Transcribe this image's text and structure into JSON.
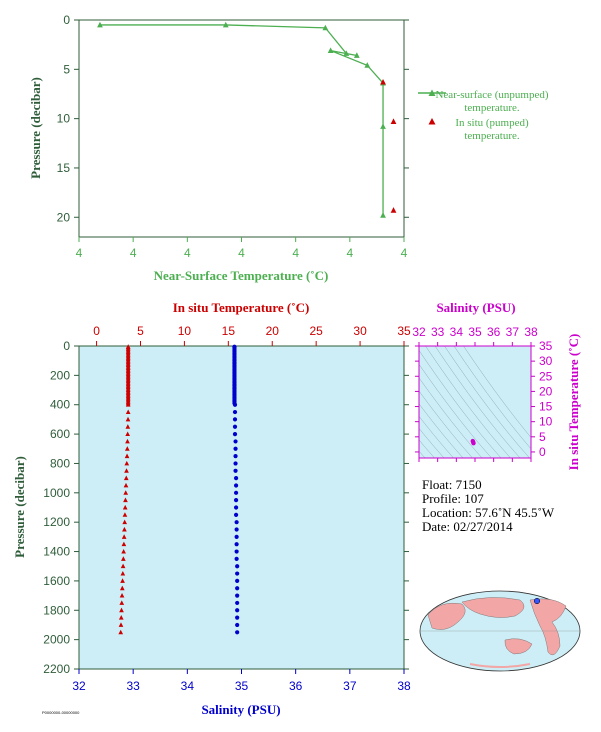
{
  "colors": {
    "green": "#4caf50",
    "axis_green": "#2f5d3a",
    "red": "#cc0000",
    "blue": "#0000cc",
    "magenta": "#cc00cc",
    "panel_bg": "#cdeef6",
    "ts_contour": "#8fa8b8",
    "land": "#f2a6a6",
    "ocean": "#cdeef6"
  },
  "chart_data": [
    {
      "type": "line",
      "xlabel": "Near-Surface Temperature (˚C)",
      "ylabel": "Pressure (decibar)",
      "x_tick_labels": [
        "4",
        "4",
        "4",
        "4",
        "4",
        "4",
        "4"
      ],
      "y_ticks": [
        0,
        5,
        10,
        15,
        20
      ],
      "ylim": [
        0,
        22
      ],
      "xlim": [
        3.4,
        4.02
      ],
      "y_reversed": true,
      "legend_placement": "right",
      "series": [
        {
          "name": "Near-surface (unpumped) temperature.",
          "marker": "triangle",
          "line": true,
          "color": "#4caf50",
          "points": [
            {
              "x": 3.44,
              "y": 0.5
            },
            {
              "x": 3.68,
              "y": 0.5
            },
            {
              "x": 3.87,
              "y": 0.8
            },
            {
              "x": 3.91,
              "y": 3.4
            },
            {
              "x": 3.93,
              "y": 3.6
            },
            {
              "x": 3.88,
              "y": 3.1
            },
            {
              "x": 3.95,
              "y": 4.6
            },
            {
              "x": 3.98,
              "y": 6.4
            },
            {
              "x": 3.98,
              "y": 10.8
            },
            {
              "x": 3.98,
              "y": 19.8
            }
          ]
        },
        {
          "name": "In situ (pumped) temperature.",
          "marker": "triangle",
          "line": false,
          "color": "#cc0000",
          "points": [
            {
              "x": 3.98,
              "y": 6.3
            },
            {
              "x": 4.0,
              "y": 10.3
            },
            {
              "x": 4.0,
              "y": 19.3
            }
          ]
        }
      ]
    },
    {
      "type": "scatter",
      "top_axis_label": "In situ Temperature (˚C)",
      "bottom_axis_label": "Salinity (PSU)",
      "ylabel": "Pressure (decibar)",
      "temp_range": [
        -2,
        35
      ],
      "temp_ticks": [
        0,
        5,
        10,
        15,
        20,
        25,
        30,
        35
      ],
      "sal_range": [
        32,
        38
      ],
      "sal_ticks": [
        32,
        33,
        34,
        35,
        36,
        37,
        38
      ],
      "pressure_range": [
        0,
        2200
      ],
      "pressure_ticks": [
        0,
        200,
        400,
        600,
        800,
        1000,
        1200,
        1400,
        1600,
        1800,
        2000,
        2200
      ],
      "y_reversed": true,
      "series": [
        {
          "quantity": "temperature",
          "marker": "triangle",
          "color": "#cc0000",
          "points": [
            [
              3.6,
              5
            ],
            [
              3.6,
              10
            ],
            [
              3.6,
              20
            ],
            [
              3.6,
              30
            ],
            [
              3.6,
              40
            ],
            [
              3.6,
              50
            ],
            [
              3.6,
              60
            ],
            [
              3.6,
              70
            ],
            [
              3.6,
              80
            ],
            [
              3.6,
              90
            ],
            [
              3.6,
              100
            ],
            [
              3.6,
              110
            ],
            [
              3.6,
              120
            ],
            [
              3.6,
              130
            ],
            [
              3.6,
              140
            ],
            [
              3.6,
              150
            ],
            [
              3.6,
              160
            ],
            [
              3.6,
              170
            ],
            [
              3.6,
              180
            ],
            [
              3.6,
              190
            ],
            [
              3.6,
              200
            ],
            [
              3.6,
              210
            ],
            [
              3.6,
              220
            ],
            [
              3.6,
              230
            ],
            [
              3.6,
              240
            ],
            [
              3.6,
              250
            ],
            [
              3.6,
              260
            ],
            [
              3.6,
              270
            ],
            [
              3.6,
              280
            ],
            [
              3.6,
              290
            ],
            [
              3.6,
              300
            ],
            [
              3.6,
              310
            ],
            [
              3.6,
              320
            ],
            [
              3.6,
              330
            ],
            [
              3.6,
              340
            ],
            [
              3.6,
              350
            ],
            [
              3.6,
              360
            ],
            [
              3.6,
              370
            ],
            [
              3.6,
              380
            ],
            [
              3.6,
              390
            ],
            [
              3.6,
              400
            ],
            [
              3.6,
              450
            ],
            [
              3.58,
              500
            ],
            [
              3.56,
              550
            ],
            [
              3.54,
              600
            ],
            [
              3.52,
              650
            ],
            [
              3.5,
              700
            ],
            [
              3.47,
              750
            ],
            [
              3.44,
              800
            ],
            [
              3.41,
              850
            ],
            [
              3.38,
              900
            ],
            [
              3.35,
              950
            ],
            [
              3.32,
              1000
            ],
            [
              3.29,
              1050
            ],
            [
              3.26,
              1100
            ],
            [
              3.23,
              1150
            ],
            [
              3.2,
              1200
            ],
            [
              3.17,
              1250
            ],
            [
              3.14,
              1300
            ],
            [
              3.11,
              1350
            ],
            [
              3.08,
              1400
            ],
            [
              3.05,
              1450
            ],
            [
              3.02,
              1500
            ],
            [
              2.99,
              1550
            ],
            [
              2.96,
              1600
            ],
            [
              2.93,
              1650
            ],
            [
              2.9,
              1700
            ],
            [
              2.87,
              1750
            ],
            [
              2.84,
              1800
            ],
            [
              2.81,
              1850
            ],
            [
              2.78,
              1900
            ],
            [
              2.75,
              1950
            ]
          ]
        },
        {
          "quantity": "salinity",
          "marker": "circle",
          "color": "#0000cc",
          "points": [
            [
              34.87,
              5
            ],
            [
              34.87,
              10
            ],
            [
              34.87,
              20
            ],
            [
              34.87,
              30
            ],
            [
              34.87,
              40
            ],
            [
              34.87,
              50
            ],
            [
              34.87,
              60
            ],
            [
              34.87,
              70
            ],
            [
              34.87,
              80
            ],
            [
              34.87,
              90
            ],
            [
              34.87,
              100
            ],
            [
              34.87,
              110
            ],
            [
              34.87,
              120
            ],
            [
              34.87,
              130
            ],
            [
              34.87,
              140
            ],
            [
              34.87,
              150
            ],
            [
              34.87,
              160
            ],
            [
              34.87,
              170
            ],
            [
              34.87,
              180
            ],
            [
              34.87,
              190
            ],
            [
              34.87,
              200
            ],
            [
              34.87,
              210
            ],
            [
              34.87,
              220
            ],
            [
              34.87,
              230
            ],
            [
              34.87,
              240
            ],
            [
              34.87,
              250
            ],
            [
              34.87,
              260
            ],
            [
              34.87,
              270
            ],
            [
              34.87,
              280
            ],
            [
              34.87,
              290
            ],
            [
              34.87,
              300
            ],
            [
              34.87,
              310
            ],
            [
              34.87,
              320
            ],
            [
              34.87,
              330
            ],
            [
              34.87,
              340
            ],
            [
              34.87,
              350
            ],
            [
              34.87,
              360
            ],
            [
              34.87,
              370
            ],
            [
              34.87,
              380
            ],
            [
              34.87,
              390
            ],
            [
              34.88,
              400
            ],
            [
              34.88,
              450
            ],
            [
              34.88,
              500
            ],
            [
              34.88,
              550
            ],
            [
              34.88,
              600
            ],
            [
              34.89,
              650
            ],
            [
              34.89,
              700
            ],
            [
              34.89,
              750
            ],
            [
              34.89,
              800
            ],
            [
              34.89,
              850
            ],
            [
              34.9,
              900
            ],
            [
              34.9,
              950
            ],
            [
              34.9,
              1000
            ],
            [
              34.9,
              1050
            ],
            [
              34.9,
              1100
            ],
            [
              34.9,
              1150
            ],
            [
              34.91,
              1200
            ],
            [
              34.91,
              1250
            ],
            [
              34.91,
              1300
            ],
            [
              34.91,
              1350
            ],
            [
              34.91,
              1400
            ],
            [
              34.91,
              1450
            ],
            [
              34.92,
              1500
            ],
            [
              34.92,
              1550
            ],
            [
              34.92,
              1600
            ],
            [
              34.92,
              1650
            ],
            [
              34.92,
              1700
            ],
            [
              34.92,
              1750
            ],
            [
              34.92,
              1800
            ],
            [
              34.92,
              1850
            ],
            [
              34.92,
              1900
            ],
            [
              34.92,
              1950
            ]
          ]
        }
      ]
    },
    {
      "type": "scatter",
      "top_axis_label": "Salinity (PSU)",
      "ylabel": "In situ Temperature (˚C)",
      "sal_range": [
        32,
        38
      ],
      "sal_ticks": [
        32,
        33,
        34,
        35,
        36,
        37,
        38
      ],
      "temp_range": [
        -2,
        35
      ],
      "temp_ticks": [
        0,
        5,
        10,
        15,
        20,
        25,
        30,
        35
      ],
      "series": [
        {
          "marker": "circle",
          "color": "#cc00cc",
          "points": [
            [
              34.9,
              3.3
            ],
            [
              34.88,
              3.6
            ],
            [
              34.92,
              2.9
            ]
          ]
        }
      ]
    }
  ],
  "info": {
    "float": "Float:  7150",
    "profile": "Profile:  107",
    "location": "Location:  57.6˚N  45.5˚W",
    "date": "Date:  02/27/2014"
  },
  "footer_code": "P0000000-00000000"
}
